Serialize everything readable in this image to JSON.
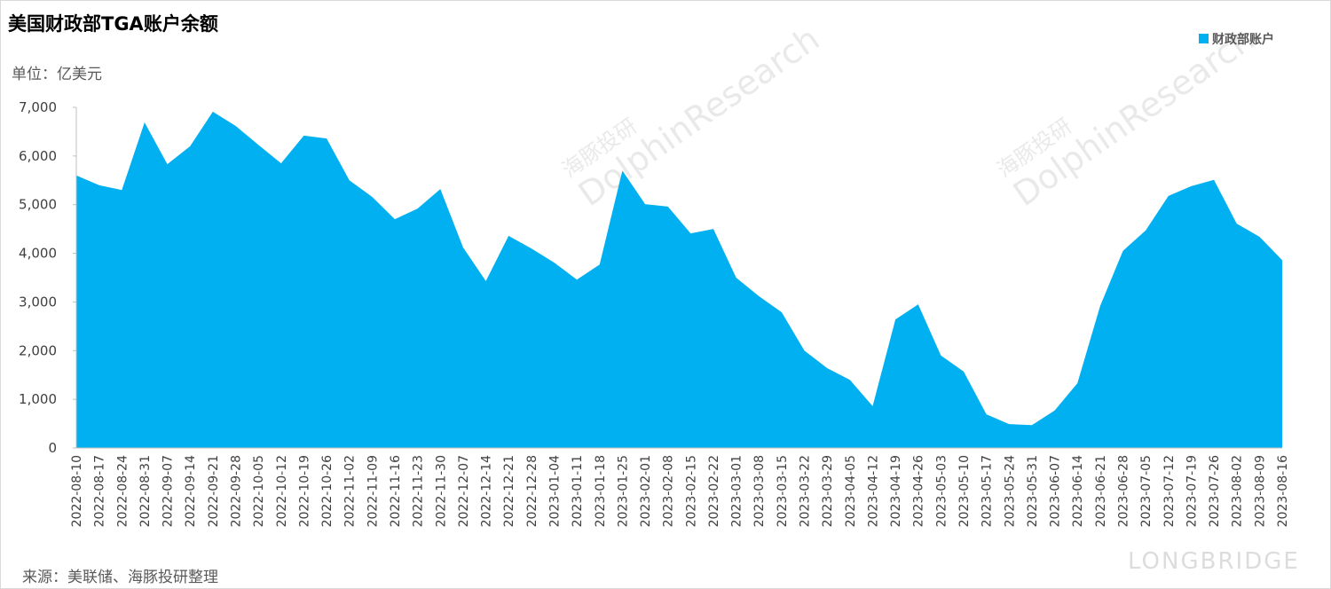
{
  "chart_data": {
    "type": "area",
    "title": "美国财政部TGA账户余额",
    "unit_label": "单位：亿美元",
    "source": "来源：美联储、海豚投研整理",
    "watermarks": [
      "海豚投研",
      "DolphinResearch",
      "LONGBRIDGE"
    ],
    "legend_position": "top-right",
    "categories": [
      "2022-08-10",
      "2022-08-17",
      "2022-08-24",
      "2022-08-31",
      "2022-09-07",
      "2022-09-14",
      "2022-09-21",
      "2022-09-28",
      "2022-10-05",
      "2022-10-12",
      "2022-10-19",
      "2022-10-26",
      "2022-11-02",
      "2022-11-09",
      "2022-11-16",
      "2022-11-23",
      "2022-11-30",
      "2022-12-07",
      "2022-12-14",
      "2022-12-21",
      "2022-12-28",
      "2023-01-04",
      "2023-01-11",
      "2023-01-18",
      "2023-01-25",
      "2023-02-01",
      "2023-02-08",
      "2023-02-15",
      "2023-02-22",
      "2023-03-01",
      "2023-03-08",
      "2023-03-15",
      "2023-03-22",
      "2023-03-29",
      "2023-04-05",
      "2023-04-12",
      "2023-04-19",
      "2023-04-26",
      "2023-05-03",
      "2023-05-10",
      "2023-05-17",
      "2023-05-24",
      "2023-05-31",
      "2023-06-07",
      "2023-06-14",
      "2023-06-21",
      "2023-06-28",
      "2023-07-05",
      "2023-07-12",
      "2023-07-19",
      "2023-07-26",
      "2023-08-02",
      "2023-08-09",
      "2023-08-16"
    ],
    "series": [
      {
        "name": "财政部账户",
        "color": "#00b0f0",
        "values": [
          5600,
          5400,
          5300,
          6690,
          5830,
          6200,
          6910,
          6620,
          6230,
          5850,
          6420,
          6360,
          5500,
          5160,
          4700,
          4920,
          5320,
          4120,
          3430,
          4360,
          4100,
          3810,
          3460,
          3770,
          5700,
          5010,
          4960,
          4410,
          4500,
          3500,
          3120,
          2790,
          2000,
          1640,
          1400,
          860,
          2640,
          2950,
          1900,
          1570,
          690,
          490,
          470,
          770,
          1330,
          2920,
          4050,
          4470,
          5180,
          5380,
          5510,
          4610,
          4340,
          3860
        ]
      }
    ],
    "ylim": [
      0,
      7000
    ],
    "yticks": [
      0,
      {
        "value": 1000,
        "label": "1,000"
      },
      {
        "value": 2000,
        "label": "2,000"
      },
      {
        "value": 3000,
        "label": "3,000"
      },
      {
        "value": 4000,
        "label": "4,000"
      },
      {
        "value": 5000,
        "label": "5,000"
      },
      {
        "value": 6000,
        "label": "6,000"
      },
      {
        "value": 7000,
        "label": "7,000"
      }
    ],
    "grid": false
  }
}
